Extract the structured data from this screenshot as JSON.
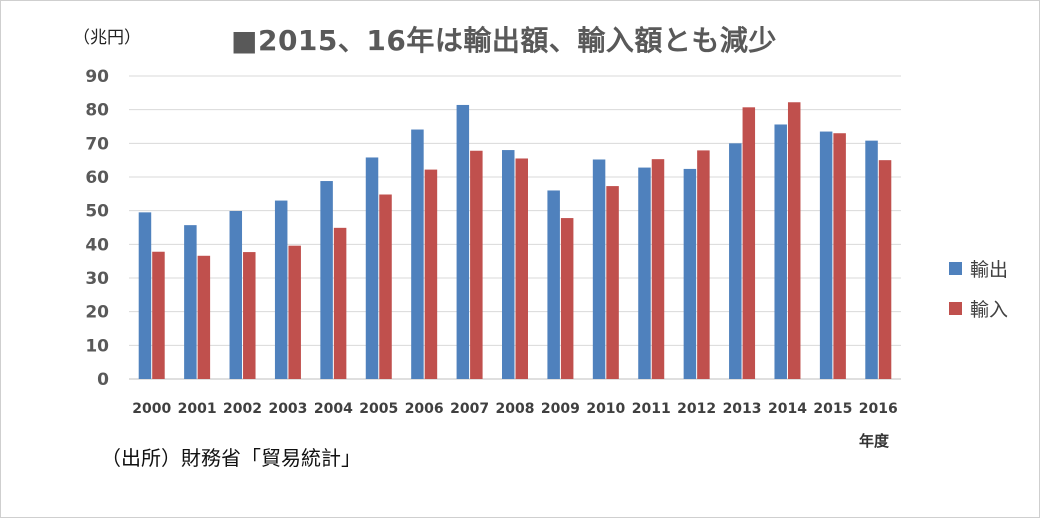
{
  "title": "■2015、16年は輸出額、輸入額とも減少",
  "unit_label": "（兆円）",
  "source_note": "（出所）財務省「貿易統計」",
  "colors": {
    "export": "#4f81bd",
    "import": "#c0504d",
    "grid": "#d9d9d9",
    "axis": "#bfbfbf"
  },
  "chart_data": {
    "type": "bar",
    "title": "■2015、16年は輸出額、輸入額とも減少",
    "xlabel": "年度",
    "ylabel": "（兆円）",
    "ylim": [
      0,
      90
    ],
    "yticks": [
      0,
      10,
      20,
      30,
      40,
      50,
      60,
      70,
      80,
      90
    ],
    "grid": true,
    "legend_position": "right",
    "categories": [
      "2000",
      "2001",
      "2002",
      "2003",
      "2004",
      "2005",
      "2006",
      "2007",
      "2008",
      "2009",
      "2010",
      "2011",
      "2012",
      "2013",
      "2014",
      "2015",
      "2016"
    ],
    "series": [
      {
        "name": "輸出",
        "values": [
          49.5,
          45.7,
          49.9,
          53.0,
          58.8,
          65.8,
          74.1,
          81.4,
          68.0,
          56.0,
          65.2,
          62.8,
          62.4,
          70.0,
          75.6,
          73.5,
          70.8
        ]
      },
      {
        "name": "輸入",
        "values": [
          37.8,
          36.6,
          37.7,
          39.6,
          44.9,
          54.8,
          62.2,
          67.8,
          65.5,
          47.8,
          57.3,
          65.3,
          67.9,
          80.7,
          82.2,
          73.0,
          65.0
        ]
      }
    ]
  }
}
